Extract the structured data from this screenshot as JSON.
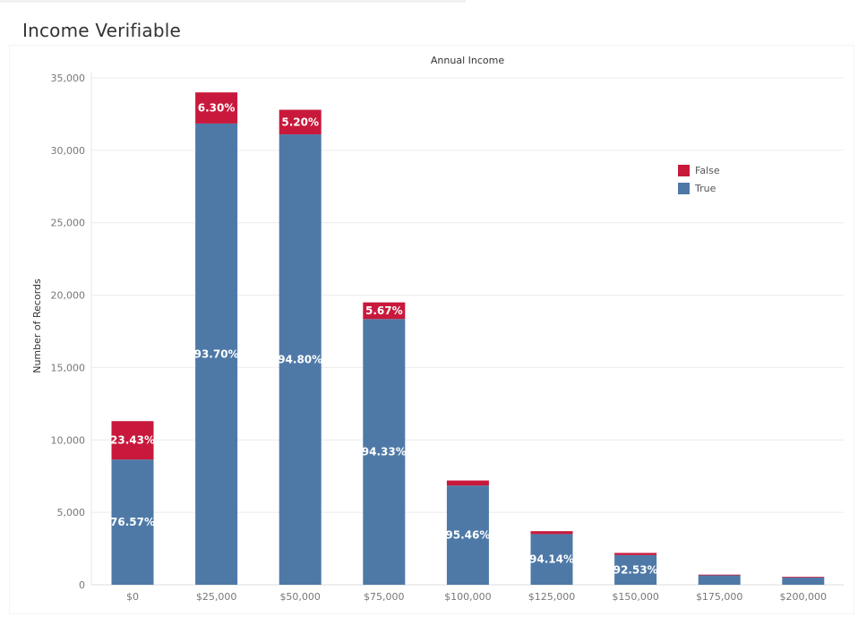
{
  "sheet_title": "Income Verifiable",
  "chart_data": {
    "type": "bar",
    "stacked": true,
    "title": "Annual Income",
    "xlabel": "",
    "ylabel": "Number of Records",
    "categories": [
      "$0",
      "$25,000",
      "$50,000",
      "$75,000",
      "$100,000",
      "$125,000",
      "$150,000",
      "$175,000",
      "$200,000"
    ],
    "ylim": [
      0,
      35000
    ],
    "yticks": [
      0,
      5000,
      10000,
      15000,
      20000,
      25000,
      30000,
      35000
    ],
    "ytick_labels": [
      "0",
      "5,000",
      "10,000",
      "15,000",
      "20,000",
      "25,000",
      "30,000",
      "35,000"
    ],
    "grid": true,
    "legend_position": "top-right",
    "series": [
      {
        "name": "True",
        "color": "#4e79a7",
        "values": [
          8650,
          31850,
          31100,
          18350,
          6850,
          3500,
          2050,
          650,
          500
        ],
        "labels": [
          "76.57%",
          "93.70%",
          "94.80%",
          "94.33%",
          "95.46%",
          "94.14%",
          "92.53%",
          "",
          ""
        ]
      },
      {
        "name": "False",
        "color": "#c8193c",
        "values": [
          2650,
          2150,
          1700,
          1150,
          350,
          200,
          150,
          50,
          50
        ],
        "labels": [
          "23.43%",
          "6.30%",
          "5.20%",
          "5.67%",
          "",
          "",
          "",
          "",
          ""
        ]
      }
    ],
    "legend_order": [
      "False",
      "True"
    ]
  }
}
